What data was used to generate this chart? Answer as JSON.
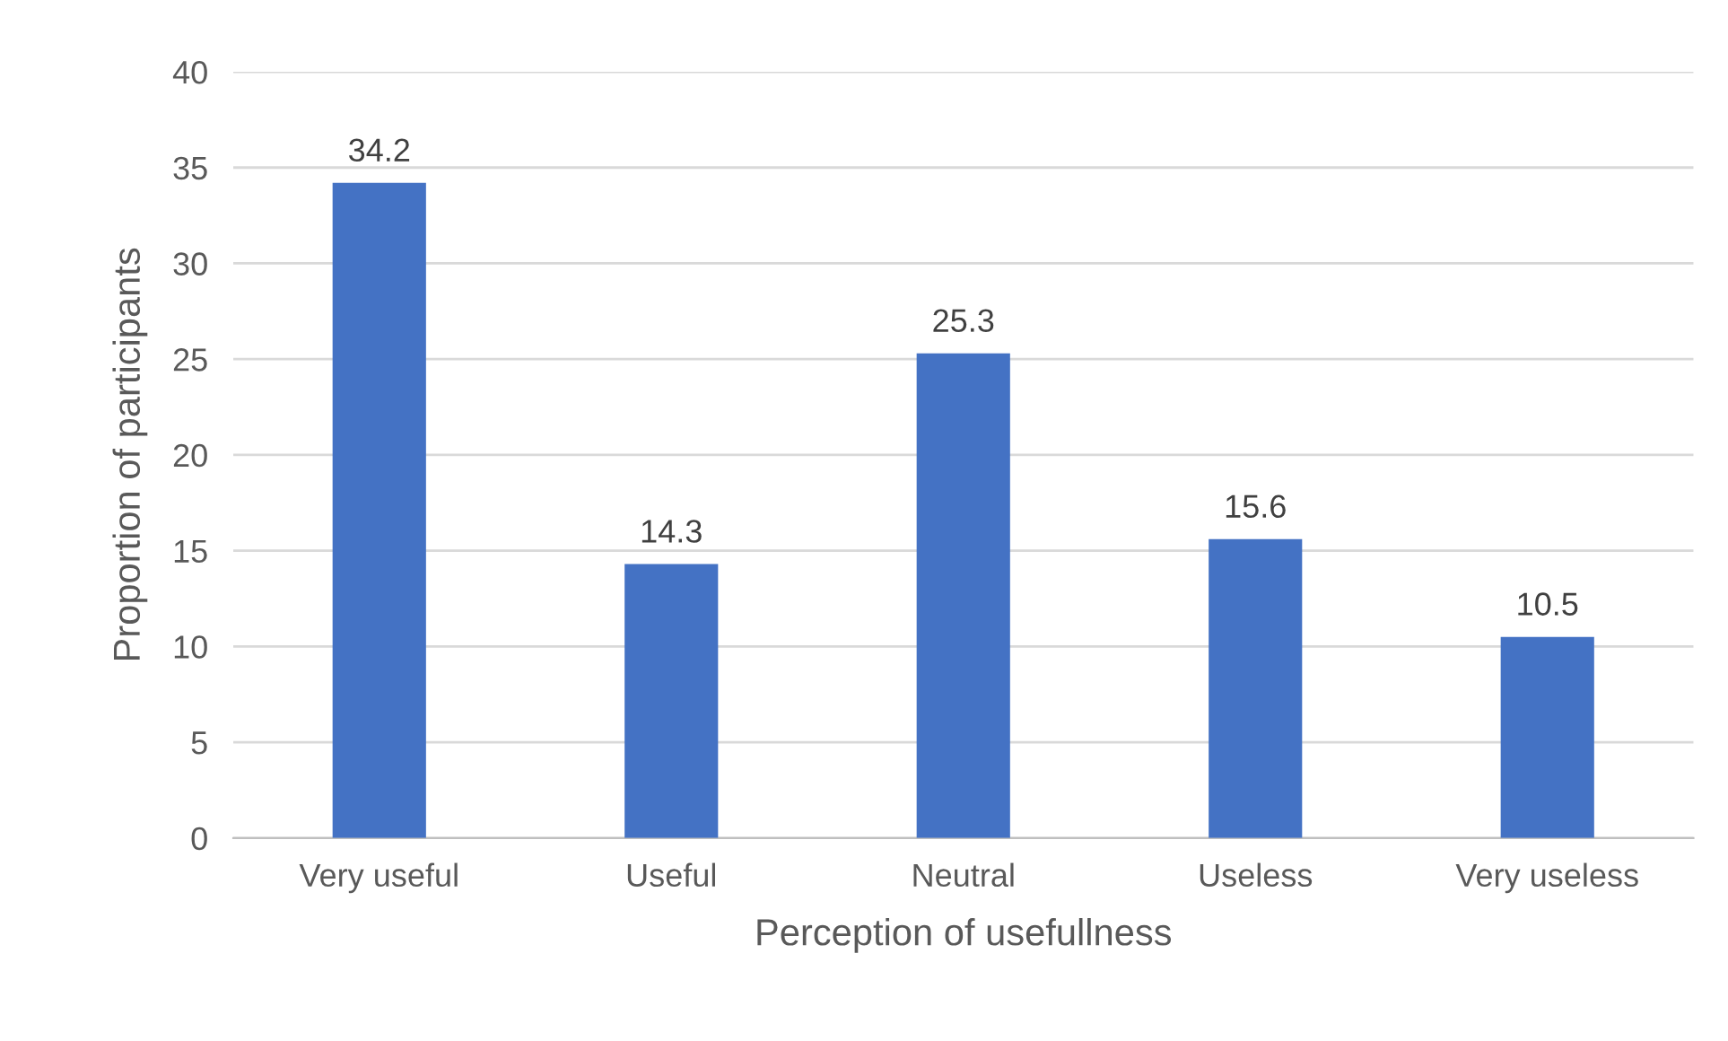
{
  "chart_data": {
    "type": "bar",
    "xlabel": "Perception of usefullness",
    "ylabel": "Proportion of participants",
    "categories": [
      "Very useful",
      "Useful",
      "Neutral",
      "Useless",
      "Very useless"
    ],
    "values": [
      34.2,
      14.3,
      25.3,
      15.6,
      10.5
    ],
    "color": "#4472c4",
    "ylim": [
      0,
      40
    ],
    "yticks": [
      0,
      5,
      10,
      15,
      20,
      25,
      30,
      35,
      40
    ],
    "grid": "y",
    "data_labels": true
  }
}
